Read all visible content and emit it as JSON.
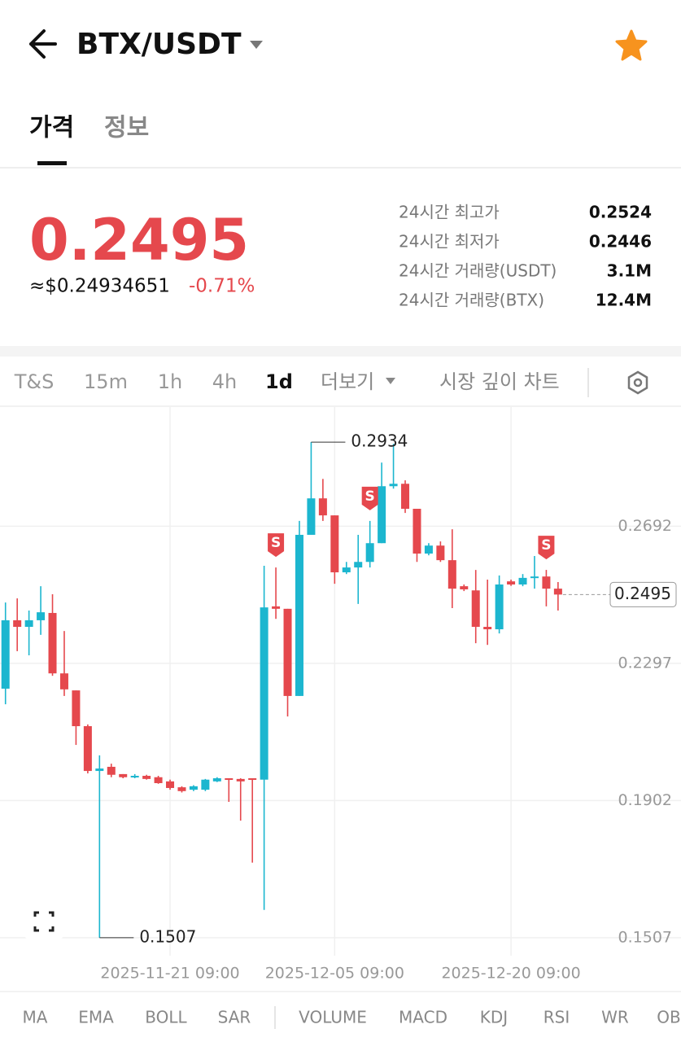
{
  "header": {
    "pair": "BTX/USDT"
  },
  "tabs": [
    "가격",
    "정보"
  ],
  "price": {
    "last": "0.2495",
    "approx": "≈$0.24934651",
    "change": "-0.71%"
  },
  "stats": [
    [
      "24시간 최고가",
      "0.2524"
    ],
    [
      "24시간 최저가",
      "0.2446"
    ],
    [
      "24시간 거래량(USDT)",
      "3.1M"
    ],
    [
      "24시간 거래량(BTX)",
      "12.4M"
    ]
  ],
  "timeframes": [
    "T&S",
    "15m",
    "1h",
    "4h",
    "1d"
  ],
  "more": "더보기",
  "depth": "시장 깊이 차트",
  "indicators": [
    "MA",
    "EMA",
    "BOLL",
    "SAR",
    "VOLUME",
    "MACD",
    "KDJ",
    "RSI",
    "WR",
    "OB"
  ],
  "chart_data": {
    "type": "candlestick",
    "categories": [
      null,
      null,
      null,
      null,
      null,
      null,
      null,
      null,
      null,
      null,
      null,
      null,
      null,
      null,
      "2025-11-21 09:00",
      null,
      null,
      null,
      null,
      null,
      null,
      null,
      null,
      null,
      null,
      null,
      null,
      null,
      "2025-12-05 09:00",
      null,
      null,
      null,
      null,
      null,
      null,
      null,
      null,
      null,
      null,
      null,
      null,
      null,
      null,
      "2025-12-20 09:00",
      null,
      null,
      null,
      null
    ],
    "open": [
      0.2224,
      0.2421,
      0.2402,
      0.2421,
      0.2442,
      0.2268,
      0.2219,
      0.2116,
      0.1987,
      0.1999,
      0.1978,
      0.1969,
      0.1973,
      0.1969,
      0.1957,
      0.194,
      0.1933,
      0.1933,
      0.1957,
      0.1966,
      0.1964,
      0.1966,
      0.1962,
      0.2461,
      0.2454,
      0.2203,
      0.2667,
      0.2772,
      0.2723,
      0.2559,
      0.2573,
      0.2589,
      0.2643,
      0.2807,
      0.2814,
      0.2742,
      0.2613,
      0.2636,
      0.2594,
      0.2519,
      0.2507,
      0.2402,
      0.2395,
      0.2533,
      0.2524,
      0.2543,
      0.2547,
      0.2512
    ],
    "high": [
      0.2472,
      0.2484,
      0.2449,
      0.2519,
      0.2496,
      0.239,
      0.2219,
      0.2121,
      0.2032,
      0.2008,
      0.1978,
      0.1978,
      0.1976,
      0.1973,
      0.1962,
      0.1943,
      0.1946,
      0.1964,
      0.1969,
      0.1966,
      0.1966,
      0.1966,
      0.2578,
      0.2573,
      0.2454,
      0.2707,
      0.2934,
      0.2828,
      0.2723,
      0.2589,
      0.2667,
      0.2707,
      0.2875,
      0.2929,
      0.2824,
      0.2742,
      0.2643,
      0.2648,
      0.2683,
      0.2524,
      0.2566,
      0.2538,
      0.255,
      0.2538,
      0.2554,
      0.2606,
      0.2566,
      0.2531
    ],
    "low": [
      0.2179,
      0.2332,
      0.232,
      0.2379,
      0.2261,
      0.2203,
      0.2062,
      0.198,
      0.1507,
      0.1969,
      0.1966,
      0.1966,
      0.1962,
      0.195,
      0.1933,
      0.1925,
      0.1929,
      0.1929,
      0.1955,
      0.1898,
      0.1844,
      0.1723,
      0.1587,
      0.2425,
      0.2144,
      0.2203,
      0.2667,
      0.2707,
      0.2526,
      0.2554,
      0.2468,
      0.2573,
      0.2643,
      0.28,
      0.273,
      0.2589,
      0.2608,
      0.2589,
      0.2456,
      0.2505,
      0.2355,
      0.235,
      0.2383,
      0.252,
      0.2519,
      0.2512,
      0.2461,
      0.2449
    ],
    "close": [
      0.2421,
      0.2402,
      0.2421,
      0.2444,
      0.2268,
      0.2222,
      0.2116,
      0.1987,
      0.1994,
      0.1976,
      0.1969,
      0.1973,
      0.1964,
      0.1952,
      0.1938,
      0.1929,
      0.1943,
      0.1962,
      0.1966,
      0.1962,
      0.1957,
      0.1962,
      0.2458,
      0.2454,
      0.2203,
      0.2667,
      0.2772,
      0.2723,
      0.2559,
      0.2573,
      0.2589,
      0.2643,
      0.2807,
      0.2814,
      0.2742,
      0.2613,
      0.2636,
      0.2594,
      0.2512,
      0.251,
      0.2402,
      0.2395,
      0.2524,
      0.2524,
      0.2543,
      0.2547,
      0.2512,
      0.2495
    ],
    "up_color": "#1cb6cf",
    "down_color": "#e5484d",
    "ylim": [
      0.1455,
      0.3035
    ],
    "yticks": [
      0.1507,
      0.1902,
      0.2297,
      0.2692
    ],
    "grid": true,
    "annotations": {
      "high": 0.2934,
      "low": 0.1507,
      "last": 0.2495
    },
    "signals": [
      {
        "index": 23,
        "label": "S"
      },
      {
        "index": 31,
        "label": "S"
      },
      {
        "index": 46,
        "label": "S"
      }
    ]
  }
}
